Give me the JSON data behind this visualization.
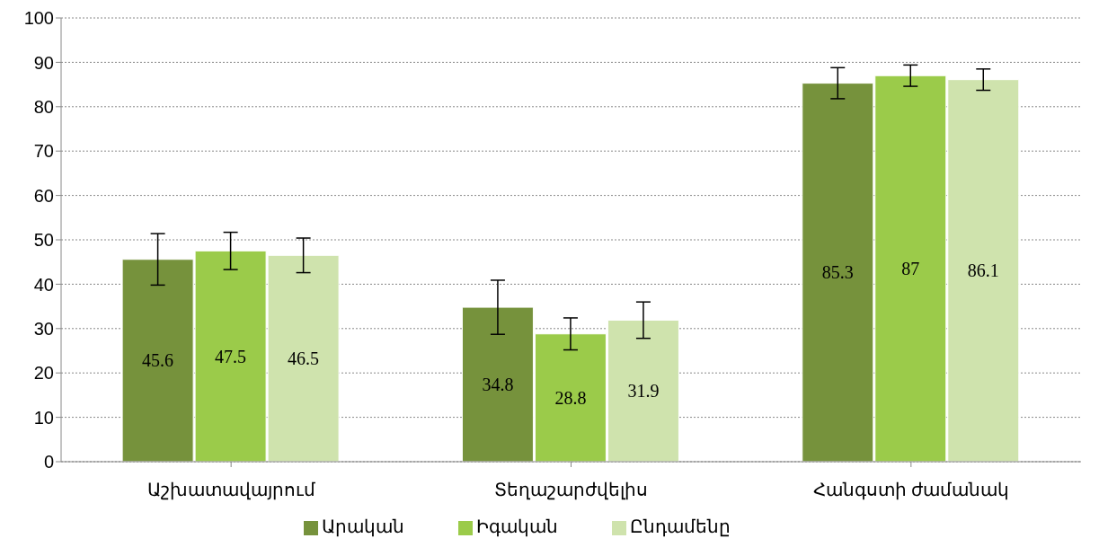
{
  "chart_data": {
    "type": "bar",
    "categories": [
      "Աշխատավայրում",
      "Տեղաշարժվելիս",
      "Հանգստի ժամանակ"
    ],
    "series": [
      {
        "name": "Արական",
        "color": "#76923c",
        "values": [
          45.6,
          34.8,
          85.3
        ],
        "errors": [
          5.8,
          6.1,
          3.5
        ]
      },
      {
        "name": "Իգական",
        "color": "#9bcb4a",
        "values": [
          47.5,
          28.8,
          87
        ],
        "errors": [
          4.2,
          3.6,
          2.4
        ]
      },
      {
        "name": "Ընդամենը",
        "color": "#cfe3ad",
        "values": [
          46.5,
          31.9,
          86.1
        ],
        "errors": [
          3.9,
          4.1,
          2.4
        ]
      }
    ],
    "ylim": [
      0,
      100
    ],
    "yticks": [
      0,
      10,
      20,
      30,
      40,
      50,
      60,
      70,
      80,
      90,
      100
    ],
    "grid": "y",
    "legend": "bottom",
    "data_labels": true
  }
}
